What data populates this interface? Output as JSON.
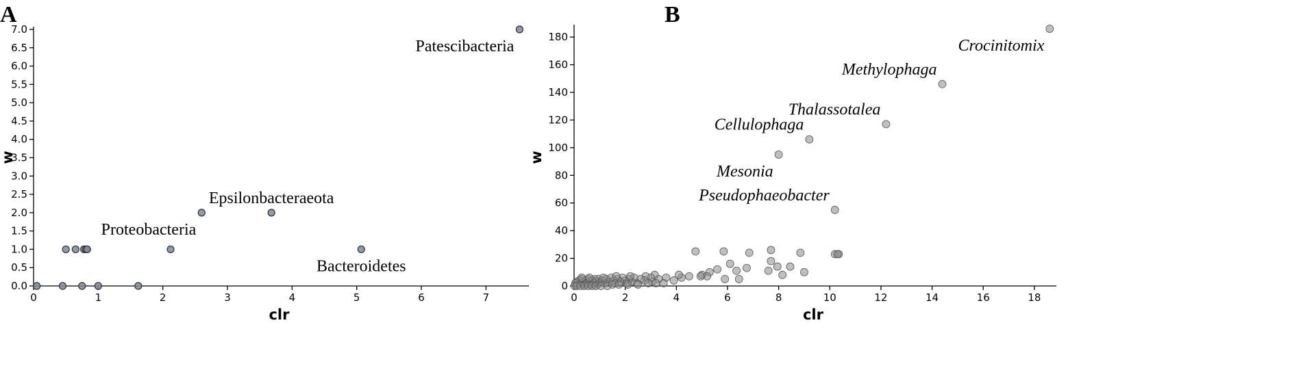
{
  "chart_data": [
    {
      "panel": "A",
      "type": "scatter",
      "xlabel": "clr",
      "ylabel": "w",
      "xlim": [
        0,
        7.6
      ],
      "ylim": [
        0,
        7.0
      ],
      "x_ticks": [
        "0",
        "1",
        "2",
        "3",
        "4",
        "5",
        "6",
        "7"
      ],
      "y_ticks": [
        "0.0",
        "0.5",
        "1.0",
        "1.5",
        "2.0",
        "2.5",
        "3.0",
        "3.5",
        "4.0",
        "4.5",
        "5.0",
        "5.5",
        "6.0",
        "6.5",
        "7.0"
      ],
      "points": [
        {
          "x": 0.05,
          "y": 0
        },
        {
          "x": 0.45,
          "y": 0
        },
        {
          "x": 0.75,
          "y": 0
        },
        {
          "x": 1.0,
          "y": 0
        },
        {
          "x": 1.62,
          "y": 0
        },
        {
          "x": 0.5,
          "y": 1
        },
        {
          "x": 0.65,
          "y": 1
        },
        {
          "x": 0.78,
          "y": 1
        },
        {
          "x": 0.81,
          "y": 1
        },
        {
          "x": 0.83,
          "y": 1
        },
        {
          "x": 2.12,
          "y": 1
        },
        {
          "x": 2.6,
          "y": 2
        },
        {
          "x": 3.68,
          "y": 2
        },
        {
          "x": 5.07,
          "y": 1
        },
        {
          "x": 7.52,
          "y": 7
        }
      ],
      "annotations": [
        {
          "text": "Patescibacteria",
          "x": 7.52,
          "y": 7,
          "pos": "below-left"
        },
        {
          "text": "Epsilonbacteraeota",
          "x": 3.68,
          "y": 2,
          "pos": "above"
        },
        {
          "text": "Proteobacteria",
          "x": 2.6,
          "y": 2,
          "pos": "below-left"
        },
        {
          "text": "Bacteroidetes",
          "x": 5.07,
          "y": 1,
          "pos": "below"
        }
      ]
    },
    {
      "panel": "B",
      "type": "scatter",
      "xlabel": "clr",
      "ylabel": "w",
      "xlim": [
        0,
        18.7
      ],
      "ylim": [
        0,
        187
      ],
      "x_ticks": [
        "0",
        "2",
        "4",
        "6",
        "8",
        "10",
        "12",
        "14",
        "16",
        "18"
      ],
      "y_ticks": [
        "0",
        "20",
        "40",
        "60",
        "80",
        "100",
        "120",
        "140",
        "160",
        "180"
      ],
      "points": [
        {
          "x": 18.6,
          "y": 186
        },
        {
          "x": 14.4,
          "y": 146
        },
        {
          "x": 12.2,
          "y": 117
        },
        {
          "x": 9.2,
          "y": 106
        },
        {
          "x": 8.0,
          "y": 95
        },
        {
          "x": 10.2,
          "y": 55
        },
        {
          "x": 10.2,
          "y": 23
        },
        {
          "x": 10.35,
          "y": 23
        },
        {
          "x": 10.3,
          "y": 23
        },
        {
          "x": 4.75,
          "y": 25
        },
        {
          "x": 5.85,
          "y": 25
        },
        {
          "x": 6.85,
          "y": 24
        },
        {
          "x": 7.7,
          "y": 26
        },
        {
          "x": 8.85,
          "y": 24
        },
        {
          "x": 7.7,
          "y": 18
        },
        {
          "x": 7.6,
          "y": 11
        },
        {
          "x": 7.95,
          "y": 14
        },
        {
          "x": 8.45,
          "y": 14
        },
        {
          "x": 8.15,
          "y": 8
        },
        {
          "x": 9.0,
          "y": 10
        },
        {
          "x": 6.1,
          "y": 16
        },
        {
          "x": 6.35,
          "y": 11
        },
        {
          "x": 6.75,
          "y": 13
        },
        {
          "x": 6.45,
          "y": 5
        },
        {
          "x": 5.9,
          "y": 5
        },
        {
          "x": 5.6,
          "y": 12
        },
        {
          "x": 5.3,
          "y": 10
        },
        {
          "x": 5.2,
          "y": 7
        },
        {
          "x": 5.0,
          "y": 8
        },
        {
          "x": 4.95,
          "y": 7
        },
        {
          "x": 4.5,
          "y": 7
        },
        {
          "x": 4.2,
          "y": 6
        },
        {
          "x": 4.1,
          "y": 8
        },
        {
          "x": 3.9,
          "y": 4
        },
        {
          "x": 3.6,
          "y": 6
        },
        {
          "x": 3.5,
          "y": 2
        },
        {
          "x": 3.3,
          "y": 5
        },
        {
          "x": 3.15,
          "y": 8
        },
        {
          "x": 3.05,
          "y": 3
        },
        {
          "x": 3.0,
          "y": 6
        },
        {
          "x": 2.8,
          "y": 7
        },
        {
          "x": 2.75,
          "y": 4
        },
        {
          "x": 2.6,
          "y": 5
        },
        {
          "x": 2.45,
          "y": 2
        },
        {
          "x": 2.35,
          "y": 6
        },
        {
          "x": 2.25,
          "y": 3
        },
        {
          "x": 2.15,
          "y": 5
        },
        {
          "x": 2.05,
          "y": 2
        },
        {
          "x": 2.0,
          "y": 4
        },
        {
          "x": 1.9,
          "y": 6
        },
        {
          "x": 1.8,
          "y": 3
        },
        {
          "x": 1.7,
          "y": 5
        },
        {
          "x": 1.6,
          "y": 2
        },
        {
          "x": 1.55,
          "y": 4
        },
        {
          "x": 1.45,
          "y": 6
        },
        {
          "x": 1.35,
          "y": 3
        },
        {
          "x": 1.25,
          "y": 5
        },
        {
          "x": 1.2,
          "y": 2
        },
        {
          "x": 1.1,
          "y": 4
        },
        {
          "x": 1.0,
          "y": 3
        },
        {
          "x": 0.95,
          "y": 5
        },
        {
          "x": 0.9,
          "y": 1
        },
        {
          "x": 0.85,
          "y": 3
        },
        {
          "x": 0.8,
          "y": 5
        },
        {
          "x": 0.75,
          "y": 2
        },
        {
          "x": 0.7,
          "y": 4
        },
        {
          "x": 0.65,
          "y": 1
        },
        {
          "x": 0.6,
          "y": 3
        },
        {
          "x": 0.55,
          "y": 5
        },
        {
          "x": 0.5,
          "y": 2
        },
        {
          "x": 0.45,
          "y": 4
        },
        {
          "x": 0.4,
          "y": 1
        },
        {
          "x": 0.35,
          "y": 3
        },
        {
          "x": 0.3,
          "y": 5
        },
        {
          "x": 0.25,
          "y": 2
        },
        {
          "x": 0.2,
          "y": 4
        },
        {
          "x": 0.15,
          "y": 1
        },
        {
          "x": 0.1,
          "y": 3
        },
        {
          "x": 0.05,
          "y": 2
        },
        {
          "x": 0.02,
          "y": 0
        },
        {
          "x": 0.1,
          "y": 0
        },
        {
          "x": 0.25,
          "y": 0
        },
        {
          "x": 0.4,
          "y": 0
        },
        {
          "x": 0.55,
          "y": 0
        },
        {
          "x": 0.7,
          "y": 0
        },
        {
          "x": 0.85,
          "y": 0
        },
        {
          "x": 1.05,
          "y": 0
        },
        {
          "x": 1.3,
          "y": 0
        },
        {
          "x": 1.5,
          "y": 1
        },
        {
          "x": 1.75,
          "y": 1
        },
        {
          "x": 2.1,
          "y": 1
        },
        {
          "x": 2.5,
          "y": 1
        },
        {
          "x": 2.9,
          "y": 2
        },
        {
          "x": 3.2,
          "y": 2
        },
        {
          "x": 0.3,
          "y": 6
        },
        {
          "x": 0.6,
          "y": 6
        },
        {
          "x": 1.15,
          "y": 6
        },
        {
          "x": 1.65,
          "y": 7
        },
        {
          "x": 2.2,
          "y": 7
        }
      ],
      "annotations": [
        {
          "text": "Crocinitomix",
          "x": 18.6,
          "y": 186,
          "pos": "below-left"
        },
        {
          "text": "Methylophaga",
          "x": 14.4,
          "y": 146,
          "pos": "above-left"
        },
        {
          "text": "Thalassotalea",
          "x": 12.2,
          "y": 117,
          "pos": "above-left"
        },
        {
          "text": "Cellulophaga",
          "x": 9.2,
          "y": 106,
          "pos": "above-left"
        },
        {
          "text": "Mesonia",
          "x": 8.0,
          "y": 95,
          "pos": "below-left"
        },
        {
          "text": "Pseudophaeobacter",
          "x": 10.2,
          "y": 55,
          "pos": "above-left"
        }
      ]
    }
  ]
}
